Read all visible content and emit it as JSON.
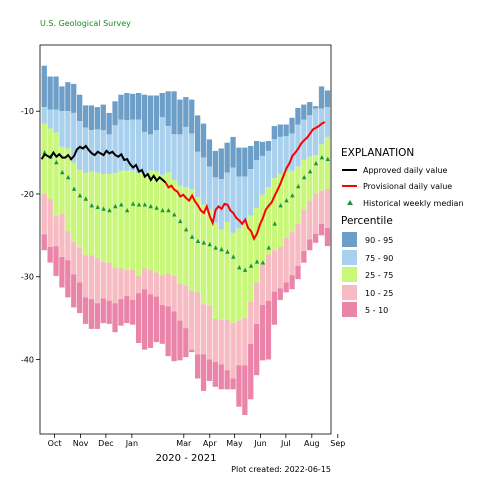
{
  "header": {
    "agency": "U.S. Geological Survey"
  },
  "footer": {
    "plot_created": "Plot created: 2022-06-15"
  },
  "colors": {
    "p90_95": "#6c9ec7",
    "p75_90": "#a9d1ee",
    "p25_75": "#c8f77a",
    "p10_25": "#f7bcc3",
    "p5_10": "#ea84a8",
    "approved": "#000000",
    "provisional": "#ff0000",
    "median": "#1a9640"
  },
  "legend": {
    "title": "EXPLANATION",
    "approved_label": "Approved daily value",
    "provisional_label": "Provisional daily value",
    "median_label": "Historical weekly median",
    "percentile_title": "Percentile",
    "p90_95_label": "90 - 95",
    "p75_90_label": "75 - 90",
    "p25_75_label": "25 - 75",
    "p10_25_label": "10 - 25",
    "p5_10_label": "5 - 10"
  },
  "chart_data": {
    "type": "area",
    "title": "",
    "xlabel": "2020 - 2021",
    "ylabel": "",
    "ylim": [
      -49,
      -2
    ],
    "xlim": [
      0,
      52
    ],
    "yticks": [
      -10,
      -20,
      -30,
      -40
    ],
    "ytick_labels": [
      "-10",
      "-20",
      "-30",
      "-40"
    ],
    "xtick_labels": [
      "Oct",
      "Nov",
      "Dec",
      "Jan",
      "Mar",
      "Apr",
      "May",
      "Jun",
      "Jul",
      "Aug",
      "Sep"
    ],
    "xtick_weeks": [
      2.2,
      6.6,
      10.9,
      15.3,
      24.1,
      28.5,
      32.7,
      37.1,
      41.4,
      45.8,
      50.2
    ],
    "weekly_percentiles": {
      "p95": [
        -4.5,
        -5.8,
        -5.8,
        -7,
        -6.5,
        -6.7,
        -8,
        -9.3,
        -9.3,
        -9.5,
        -9.2,
        -10.2,
        -8.8,
        -8,
        -7.8,
        -7.9,
        -7.8,
        -8,
        -8.1,
        -8.1,
        -7.8,
        -7.6,
        -7.6,
        -8.6,
        -8.3,
        -8.6,
        -10.5,
        -11.5,
        -13.4,
        -14.8,
        -14.5,
        -13.8,
        -13.1,
        -14.4,
        -14.4,
        -14.2,
        -13.6,
        -13.7,
        -13.6,
        -11.8,
        -11.6,
        -11.6,
        -10.8,
        -9.6,
        -9.2,
        -8.9,
        -9.4,
        -7,
        -7.5
      ],
      "p90": [
        -9.5,
        -9.8,
        -9.8,
        -10,
        -10,
        -10.2,
        -11.2,
        -12,
        -12.3,
        -12.2,
        -12.3,
        -12.8,
        -11.7,
        -11,
        -11.1,
        -11,
        -11,
        -12.5,
        -12.8,
        -12.3,
        -10.7,
        -11.8,
        -12.8,
        -12.8,
        -11.9,
        -12.7,
        -14.9,
        -15.6,
        -16.7,
        -18,
        -18.2,
        -17.4,
        -16.8,
        -17.9,
        -17.9,
        -17,
        -15.9,
        -15.4,
        -14.8,
        -13.4,
        -13.1,
        -13,
        -12.7,
        -11.6,
        -11,
        -10.5,
        -9.7,
        -9.7,
        -9.5
      ],
      "p75": [
        -11.5,
        -12.1,
        -12.6,
        -14.3,
        -14.5,
        -16.2,
        -17.1,
        -17.4,
        -17.3,
        -17.4,
        -17.6,
        -17.6,
        -17.5,
        -17.2,
        -17.2,
        -17.2,
        -17.5,
        -17.6,
        -17.2,
        -17.3,
        -17.7,
        -17.4,
        -18.3,
        -19,
        -19.2,
        -19.4,
        -20.4,
        -21.3,
        -21.9,
        -23.5,
        -24.3,
        -23.4,
        -24.7,
        -24.2,
        -23.6,
        -22.6,
        -21.7,
        -20.1,
        -19.2,
        -18.1,
        -17.6,
        -17.3,
        -17.2,
        -16.7,
        -15.9,
        -15.5,
        -15.3,
        -14,
        -13.1
      ],
      "p25": [
        -20,
        -20.6,
        -22.7,
        -22.4,
        -24.5,
        -25.8,
        -26.5,
        -27.4,
        -27.4,
        -27.8,
        -28.2,
        -28.3,
        -28.9,
        -29,
        -29.2,
        -29.1,
        -29.9,
        -29,
        -29.1,
        -29.5,
        -29.8,
        -29.6,
        -29.9,
        -30.8,
        -31.1,
        -31.7,
        -31.9,
        -33.3,
        -33.5,
        -35.1,
        -35.2,
        -35.2,
        -35.6,
        -35.3,
        -35,
        -33,
        -30.7,
        -28.4,
        -27.3,
        -26.8,
        -26.4,
        -25.3,
        -24.6,
        -23.6,
        -21.9,
        -20.8,
        -20,
        -19.6,
        -19.4
      ],
      "p10": [
        -24.9,
        -26.4,
        -26.3,
        -27.6,
        -28,
        -29.7,
        -30.7,
        -32.5,
        -32.7,
        -33.2,
        -32.6,
        -32.9,
        -33.2,
        -32.7,
        -32.3,
        -32.8,
        -32,
        -31.5,
        -32.1,
        -32.4,
        -33.4,
        -33.6,
        -34.2,
        -35.3,
        -36.2,
        -38.8,
        -39.4,
        -39.4,
        -40,
        -40.3,
        -40.6,
        -41.3,
        -42.3,
        -40.7,
        -40.7,
        -38.1,
        -35.7,
        -33.4,
        -32.9,
        -31.8,
        -31.4,
        -30.7,
        -29.8,
        -28.7,
        -26.9,
        -25.5,
        -24.8,
        -23.6,
        -24.1
      ],
      "p5": [
        -26.8,
        -28.3,
        -29.9,
        -31.3,
        -32.5,
        -33.7,
        -34.4,
        -35.7,
        -36.3,
        -36.3,
        -35.6,
        -35.7,
        -36.7,
        -35.9,
        -35.6,
        -35.8,
        -38,
        -38.8,
        -38.6,
        -37.9,
        -38.1,
        -39.6,
        -40.2,
        -40.1,
        -39.7,
        -39.1,
        -42.3,
        -43.8,
        -42.6,
        -43.3,
        -43.6,
        -43.6,
        -43.6,
        -45.7,
        -46.7,
        -44.8,
        -41.9,
        -40.1,
        -40,
        -35.8,
        -32.8,
        -31.9,
        -31.5,
        -30.3,
        -28.3,
        -26.8,
        -25.9,
        -25,
        -26.3
      ]
    },
    "series": [
      {
        "name": "Approved daily value",
        "x": [
          0,
          0.5,
          1,
          1.5,
          2,
          2.5,
          3,
          3.5,
          4,
          4.5,
          5,
          5.5,
          6,
          6.5,
          7,
          7.5,
          8,
          8.5,
          9,
          9.5,
          10,
          10.5,
          11,
          11.5,
          12,
          12.5,
          13,
          13.5,
          14,
          14.5,
          15,
          15.5,
          16,
          16.5,
          17,
          17.5,
          18,
          18.5,
          19,
          19.5,
          20,
          20.5,
          21
        ],
        "values": [
          -15.8,
          -15.2,
          -15.4,
          -15.6,
          -15,
          -15.5,
          -15.2,
          -15.6,
          -15.6,
          -15.3,
          -15.8,
          -15.4,
          -14.6,
          -14.3,
          -14.5,
          -14.2,
          -14.7,
          -15.1,
          -15.3,
          -14.9,
          -15.1,
          -15.3,
          -14.8,
          -15.1,
          -14.9,
          -15.3,
          -15.5,
          -15.2,
          -15.9,
          -15.8,
          -16.4,
          -16.8,
          -16.5,
          -17.3,
          -17.1,
          -17.9,
          -17.6,
          -18.3,
          -17.8,
          -18.4,
          -18,
          -18.3,
          -18.6
        ]
      },
      {
        "name": "Provisional daily value",
        "x": [
          21,
          21.5,
          22,
          22.5,
          23,
          23.5,
          24,
          24.5,
          25,
          25.5,
          26,
          26.5,
          27,
          27.5,
          28,
          28.5,
          29,
          29.5,
          30,
          30.5,
          31,
          31.5,
          32,
          32.5,
          33,
          33.5,
          34,
          34.5,
          35,
          35.5,
          36,
          36.5,
          37,
          37.5,
          38,
          38.5,
          39,
          39.5,
          40,
          40.5,
          41,
          41.5,
          42,
          42.5,
          43,
          43.5,
          44,
          44.5,
          45,
          45.5,
          46,
          46.5,
          47,
          47.5,
          48
        ],
        "values": [
          -18.6,
          -19.2,
          -19,
          -19.5,
          -19.7,
          -20.3,
          -20.1,
          -20.5,
          -20.8,
          -20.2,
          -20.9,
          -21.4,
          -22,
          -22.3,
          -21.5,
          -22.7,
          -23.5,
          -21.9,
          -21.5,
          -21.8,
          -21.2,
          -21.3,
          -22,
          -22.3,
          -22.9,
          -23.2,
          -23.6,
          -23.1,
          -24.1,
          -24.5,
          -25.4,
          -24.8,
          -23.7,
          -22.9,
          -21.9,
          -21.4,
          -21,
          -20.2,
          -19.5,
          -18.7,
          -17.8,
          -16.9,
          -16.3,
          -15.4,
          -15,
          -14.5,
          -13.9,
          -13.5,
          -13.2,
          -12.7,
          -12.2,
          -12,
          -11.8,
          -11.5,
          -11.3
        ]
      },
      {
        "name": "Historical weekly median",
        "x": [
          0.5,
          1.5,
          2.5,
          3.5,
          4.5,
          5.5,
          6.5,
          7.5,
          8.5,
          9.5,
          10.5,
          11.5,
          12.5,
          13.5,
          14.5,
          15.5,
          16.5,
          17.5,
          18.5,
          19.5,
          20.5,
          21.5,
          22.5,
          23.5,
          24.5,
          25.5,
          26.5,
          27.5,
          28.5,
          29.5,
          30.5,
          31.5,
          32.5,
          33.5,
          34.5,
          35.5,
          36.5,
          37.5,
          38.5,
          39.5,
          40.5,
          41.5,
          42.5,
          43.5,
          44.5,
          45.5,
          46.5,
          47.5,
          48.5
        ],
        "values": [
          -15,
          -15.5,
          -16.2,
          -17.4,
          -18,
          -19.4,
          -20.2,
          -20.6,
          -21.4,
          -21.6,
          -21.8,
          -22,
          -21.5,
          -21.3,
          -22,
          -21.2,
          -21.3,
          -21.3,
          -21.5,
          -21.7,
          -22,
          -22,
          -22.5,
          -23.3,
          -24.3,
          -25.2,
          -25.7,
          -25.9,
          -26.1,
          -26.5,
          -26.7,
          -27,
          -27.6,
          -28.9,
          -29.2,
          -28.7,
          -28.2,
          -28.3,
          -26.5,
          -23.6,
          -21.4,
          -20.8,
          -20.2,
          -19.1,
          -18,
          -17.3,
          -16.3,
          -15.6,
          -15.8
        ]
      }
    ]
  }
}
